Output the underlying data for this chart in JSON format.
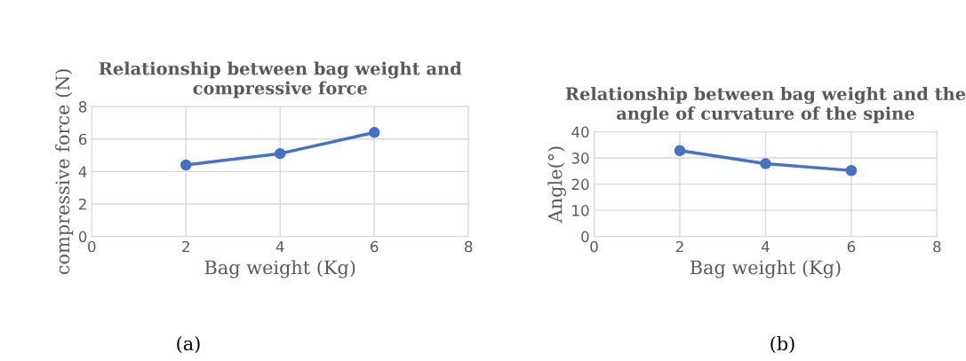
{
  "chart_data": [
    {
      "type": "line",
      "title": "Relationship between bag weight and compressive force",
      "xlabel": "Bag weight (Kg)",
      "ylabel": "compressive force (N)",
      "x": [
        2,
        4,
        6
      ],
      "series": [
        {
          "color": "#4472c4",
          "values": [
            4.4,
            5.1,
            6.4
          ]
        }
      ],
      "xlim": [
        0,
        8
      ],
      "xticks": [
        0,
        2,
        4,
        6,
        8
      ],
      "ylim": [
        0,
        8
      ],
      "yticks": [
        0,
        2,
        4,
        6,
        8
      ],
      "grid": true,
      "marker": "circle",
      "line_style": "solid",
      "annotations": [
        "(a)"
      ]
    },
    {
      "type": "line",
      "title": "Relationship between bag weight and the angle of curvature of the spine",
      "xlabel": "Bag weight (Kg)",
      "ylabel": "Angle(°)",
      "x": [
        2,
        4,
        6
      ],
      "series": [
        {
          "color": "#4472c4",
          "values": [
            32.8,
            27.8,
            25.2
          ]
        }
      ],
      "xlim": [
        0,
        8
      ],
      "xticks": [
        0,
        2,
        4,
        6,
        8
      ],
      "ylim": [
        0,
        40
      ],
      "yticks": [
        0,
        10,
        20,
        30,
        40
      ],
      "grid": true,
      "marker": "circle",
      "line_style": "solid",
      "annotations": [
        "(b)"
      ]
    }
  ]
}
